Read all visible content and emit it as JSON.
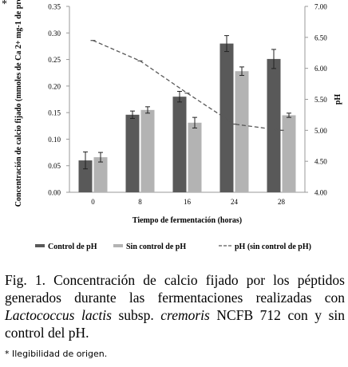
{
  "corner_mark": "*",
  "chart_data": {
    "type": "bar",
    "categories": [
      "0",
      "8",
      "16",
      "24",
      "28"
    ],
    "series": [
      {
        "name": "Control de pH",
        "kind": "bar",
        "axis": "left",
        "color": "#595959",
        "values": [
          0.06,
          0.146,
          0.18,
          0.28,
          0.251
        ],
        "errors": [
          0.016,
          0.007,
          0.01,
          0.015,
          0.018
        ]
      },
      {
        "name": "Sin control de pH",
        "kind": "bar",
        "axis": "left",
        "color": "#b3b3b3",
        "values": [
          0.066,
          0.155,
          0.131,
          0.228,
          0.145
        ],
        "errors": [
          0.009,
          0.006,
          0.01,
          0.008,
          0.004
        ]
      },
      {
        "name": "pH (sin control de pH)",
        "kind": "line",
        "axis": "right",
        "color": "#595959",
        "dash": "dashed",
        "values": [
          6.45,
          6.12,
          5.6,
          5.1,
          5.0
        ]
      }
    ],
    "xlabel": "Tiempo de fermentación (horas)",
    "ylabel_left": "Concentración de calcio fijado (mmoles de Ca 2+ mg-1 de  prot)",
    "ylabel_right": "pH",
    "ylim_left": [
      0,
      0.35
    ],
    "yticks_left": [
      "0.00",
      "0.05",
      "0.10",
      "0.15",
      "0.20",
      "0.25",
      "0.30",
      "0.35"
    ],
    "ylim_right": [
      4.0,
      7.0
    ],
    "yticks_right": [
      "4.00",
      "4.50",
      "5.00",
      "5.50",
      "6.00",
      "6.50",
      "7.00"
    ],
    "grid": false,
    "legend_position": "bottom"
  },
  "caption": {
    "part1": "Fig. 1. Concentración de calcio fijado por los péptidos generados durante las fermentaciones realizadas con ",
    "italic1": "Lactococcus lactis",
    "part2": " subsp. ",
    "italic2": "cremoris",
    "part3": " NCFB 712 con y sin control del pH."
  },
  "footnote": "* Ilegibilidad de origen."
}
